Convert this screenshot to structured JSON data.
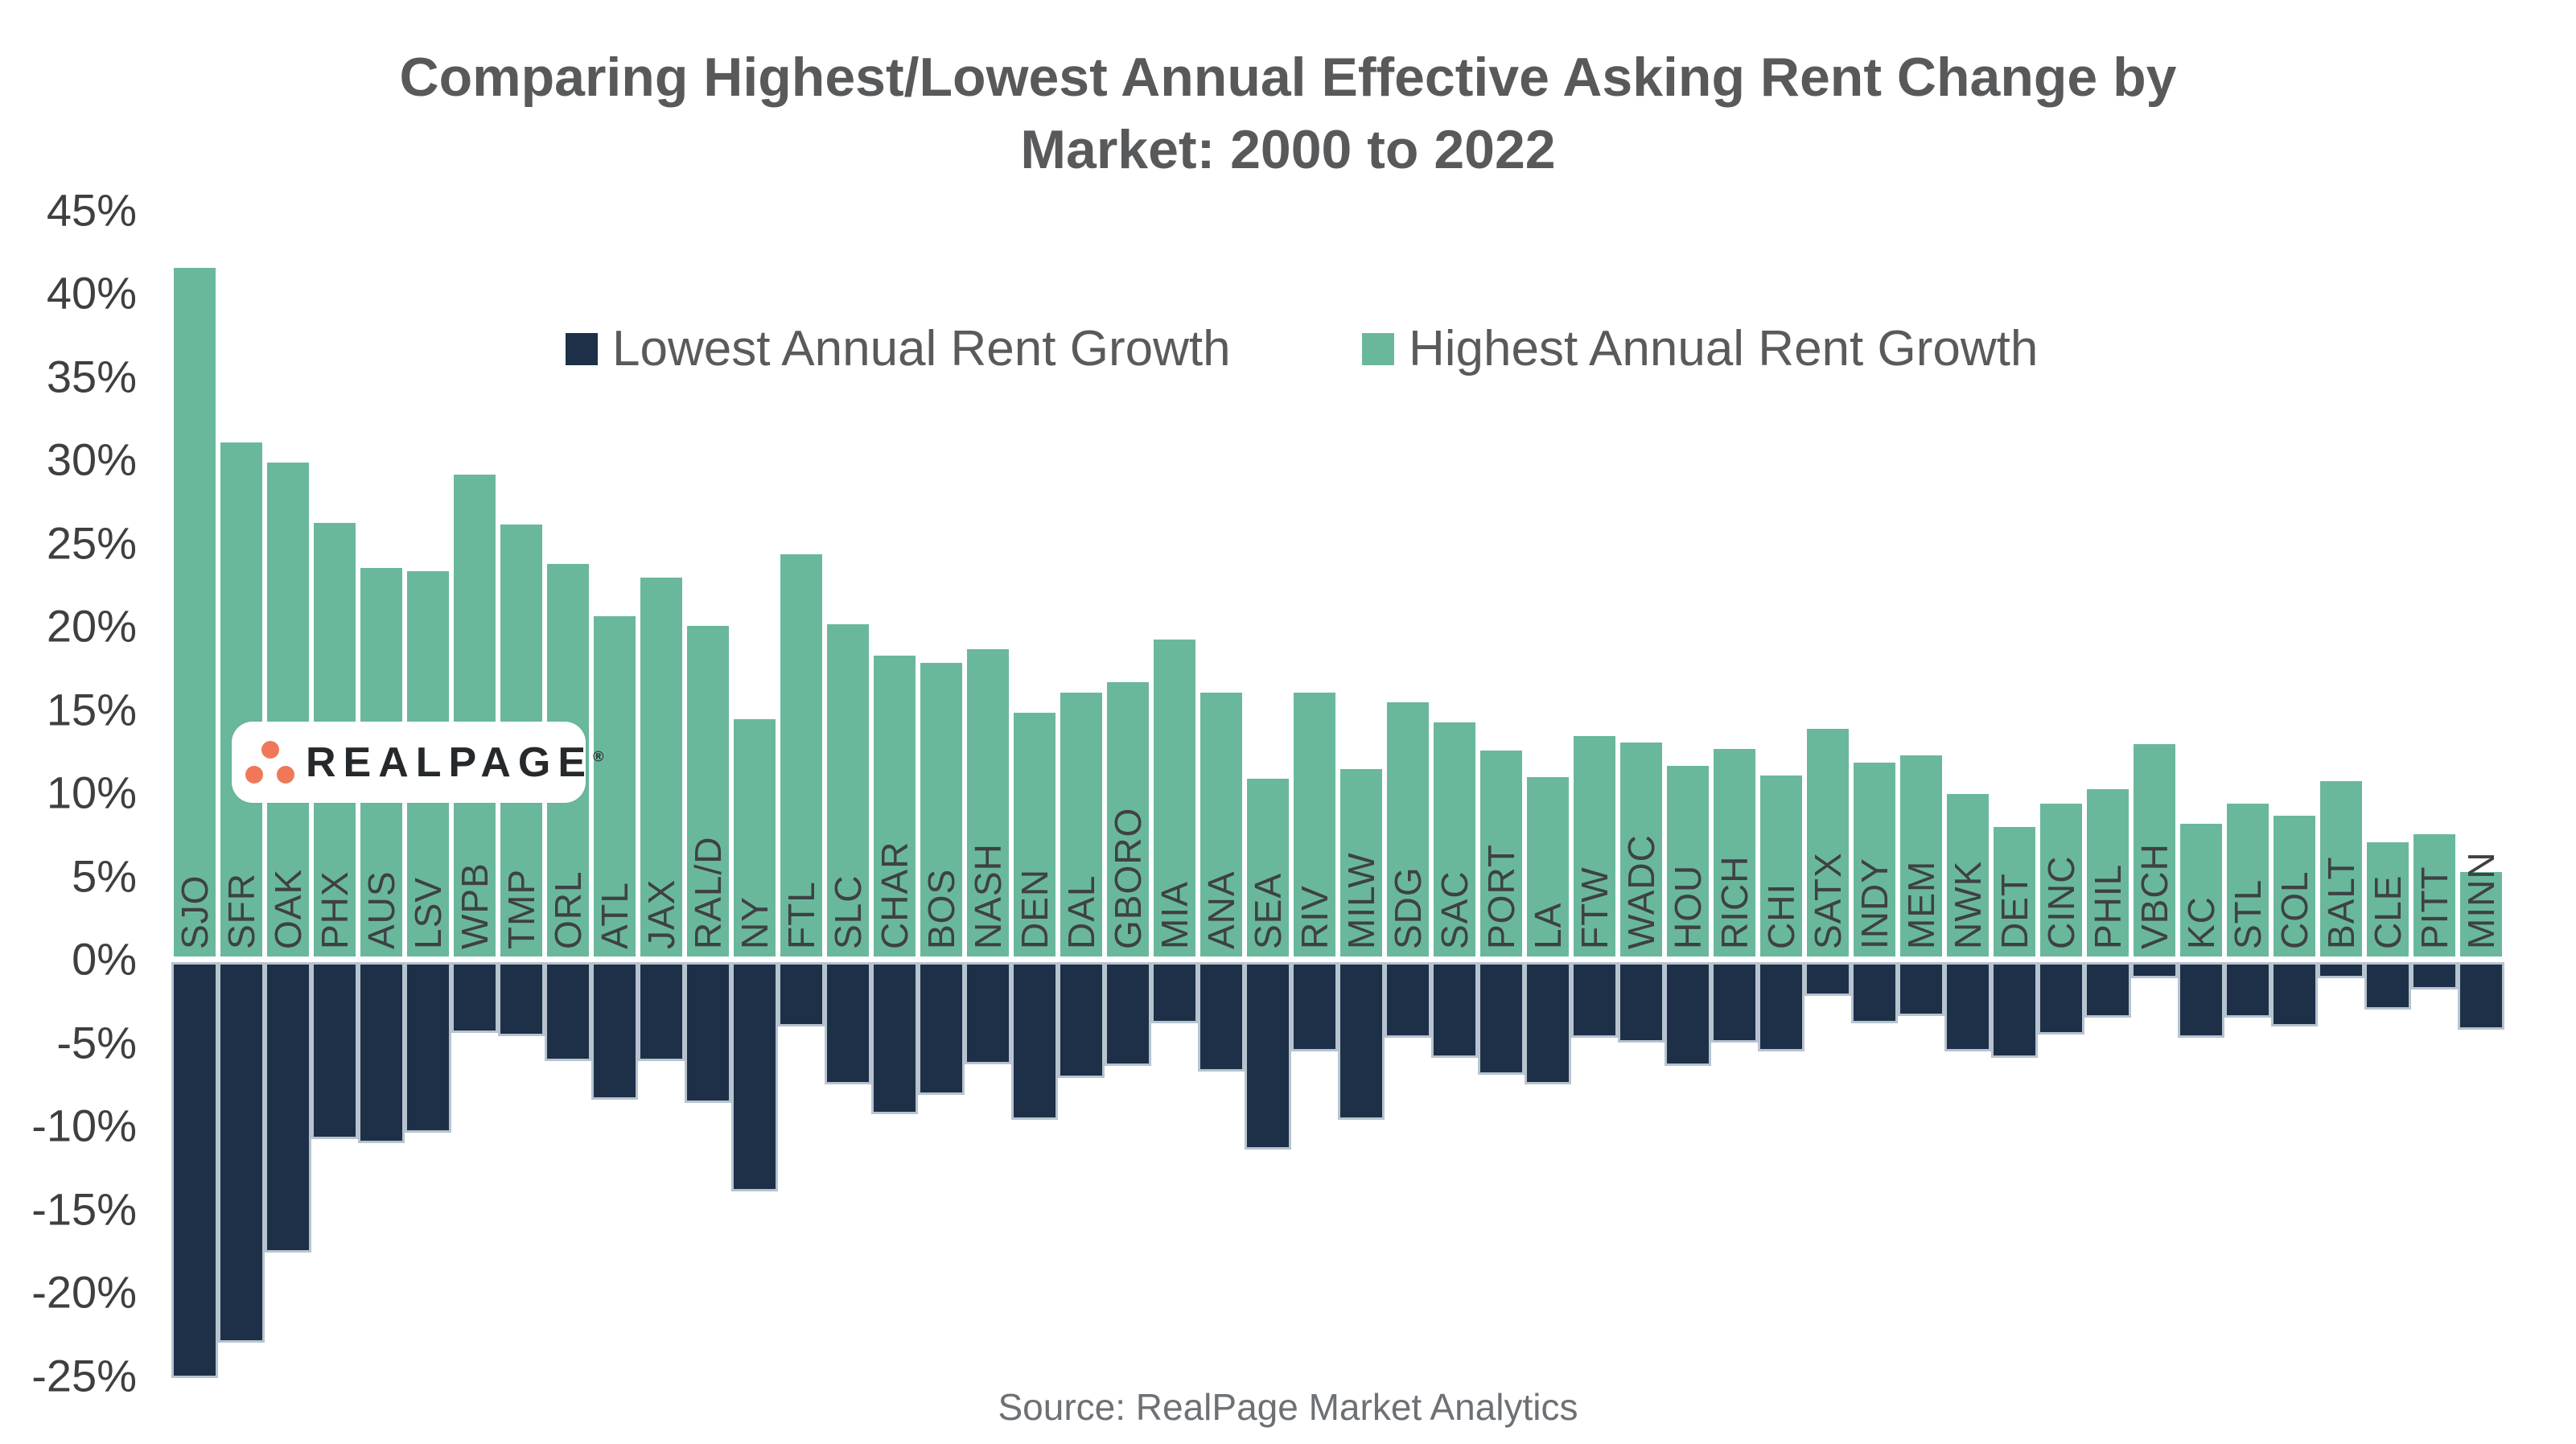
{
  "chart_data": {
    "type": "bar",
    "title": "Comparing Highest/Lowest Annual Effective Asking Rent Change by Market: 2000 to 2022",
    "title_line1": "Comparing Highest/Lowest Annual Effective Asking Rent Change by",
    "title_line2": "Market: 2000 to 2022",
    "categories": [
      "SJO",
      "SFR",
      "OAK",
      "PHX",
      "AUS",
      "LSV",
      "WPB",
      "TMP",
      "ORL",
      "ATL",
      "JAX",
      "RAL/D",
      "NY",
      "FTL",
      "SLC",
      "CHAR",
      "BOS",
      "NASH",
      "DEN",
      "DAL",
      "GBORO",
      "MIA",
      "ANA",
      "SEA",
      "RIV",
      "MILW",
      "SDG",
      "SAC",
      "PORT",
      "LA",
      "FTW",
      "WADC",
      "HOU",
      "RICH",
      "CHI",
      "SATX",
      "INDY",
      "MEM",
      "NWK",
      "DET",
      "CINC",
      "PHIL",
      "VBCH",
      "KC",
      "STL",
      "COL",
      "BALT",
      "CLE",
      "PITT",
      "MINN"
    ],
    "series": [
      {
        "name": "Lowest Annual Rent Growth",
        "color": "#1e3048",
        "values": [
          -25.0,
          -22.9,
          -17.5,
          -10.7,
          -10.9,
          -10.3,
          -4.3,
          -4.5,
          -6.0,
          -8.3,
          -6.0,
          -8.5,
          -13.8,
          -3.9,
          -7.4,
          -9.2,
          -8.0,
          -6.2,
          -9.5,
          -7.0,
          -6.3,
          -3.7,
          -6.6,
          -11.3,
          -5.4,
          -9.5,
          -4.6,
          -5.8,
          -6.8,
          -7.4,
          -4.6,
          -4.9,
          -6.3,
          -4.9,
          -5.4,
          -2.1,
          -3.7,
          -3.3,
          -5.4,
          -5.8,
          -4.4,
          -3.4,
          -1.0,
          -4.6,
          -3.4,
          -3.9,
          -1.0,
          -2.9,
          -1.7,
          -4.1
        ]
      },
      {
        "name": "Highest Annual Rent Growth",
        "color": "#6ab89b",
        "values": [
          41.5,
          31.0,
          29.8,
          26.2,
          23.5,
          23.3,
          29.1,
          26.1,
          23.7,
          20.6,
          22.9,
          20.0,
          14.4,
          24.3,
          20.1,
          18.2,
          17.8,
          18.6,
          14.8,
          16.0,
          16.6,
          19.2,
          16.0,
          10.8,
          16.0,
          11.4,
          15.4,
          14.2,
          12.5,
          10.9,
          13.4,
          13.0,
          11.6,
          12.6,
          11.0,
          13.8,
          11.8,
          12.2,
          9.9,
          7.9,
          9.3,
          10.2,
          12.9,
          8.1,
          9.3,
          8.6,
          10.7,
          7.0,
          7.5,
          5.2
        ]
      }
    ],
    "ylim": [
      -25,
      45
    ],
    "y_ticks": [
      {
        "value": 45,
        "label": "45%"
      },
      {
        "value": 40,
        "label": "40%"
      },
      {
        "value": 35,
        "label": "35%"
      },
      {
        "value": 30,
        "label": "30%"
      },
      {
        "value": 25,
        "label": "25%"
      },
      {
        "value": 20,
        "label": "20%"
      },
      {
        "value": 15,
        "label": "15%"
      },
      {
        "value": 10,
        "label": "10%"
      },
      {
        "value": 5,
        "label": "5%"
      },
      {
        "value": 0,
        "label": "0%"
      },
      {
        "value": -5,
        "label": "-5%"
      },
      {
        "value": -10,
        "label": "-10%"
      },
      {
        "value": -15,
        "label": "-15%"
      },
      {
        "value": -20,
        "label": "-20%"
      },
      {
        "value": -25,
        "label": "-25%"
      }
    ],
    "grid": "off",
    "legend_position": "top-center",
    "xlabel": "",
    "ylabel": ""
  },
  "legend": {
    "lowest_label": "Lowest Annual Rent Growth",
    "highest_label": "Highest Annual Rent Growth"
  },
  "logo": {
    "text": "REALPAGE",
    "registered_mark": "®",
    "dot_color": "#f0785a"
  },
  "source": {
    "text": "Source: RealPage Market Analytics"
  },
  "colors": {
    "highest_bar": "#6ab89b",
    "lowest_bar": "#1e3048",
    "lowest_bar_border": "#b7c4d0",
    "title_text": "#58595b",
    "axis_text": "#3f3f3f",
    "source_text": "#6d7175"
  }
}
